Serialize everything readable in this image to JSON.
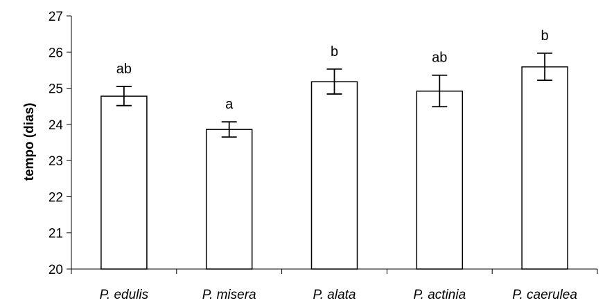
{
  "chart_data": {
    "type": "bar",
    "ylabel": "tempo (dias)",
    "xlabel": "",
    "ylim": [
      20,
      27
    ],
    "yticks": [
      20,
      21,
      22,
      23,
      24,
      25,
      26,
      27
    ],
    "categories": [
      "P. edulis",
      "P. misera",
      "P. alata",
      "P. actinia",
      "P. caerulea"
    ],
    "values": [
      24.78,
      23.86,
      25.18,
      24.92,
      25.59
    ],
    "error_upper": [
      25.05,
      24.07,
      25.53,
      25.36,
      25.97
    ],
    "error_lower": [
      24.52,
      23.65,
      24.84,
      24.49,
      25.22
    ],
    "significance_labels": [
      "ab",
      "a",
      "b",
      "ab",
      "b"
    ],
    "bar_fill": "#ffffff",
    "bar_stroke": "#000000",
    "grid": false,
    "legend": "none"
  }
}
